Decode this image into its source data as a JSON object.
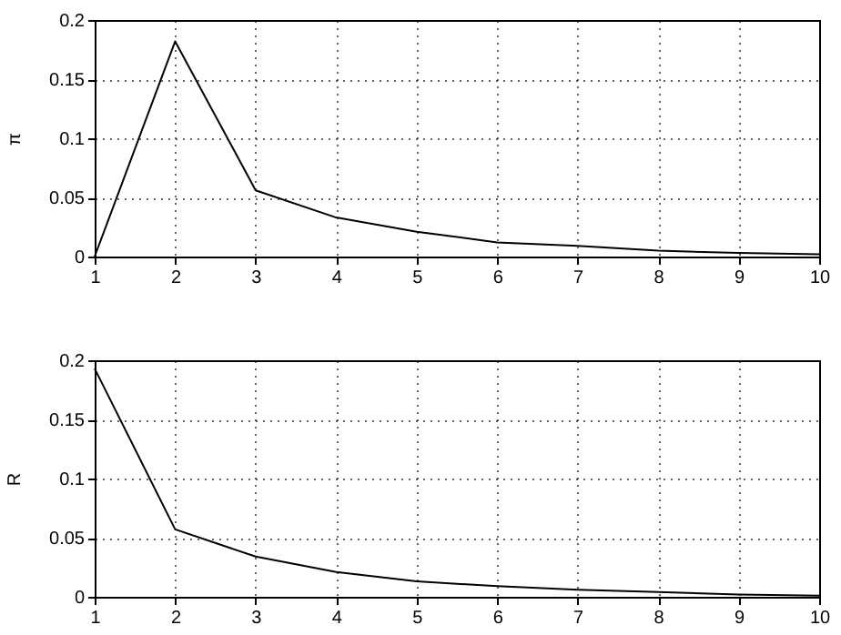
{
  "chart_data": [
    {
      "type": "line",
      "ylabel": "π",
      "x": [
        1,
        2,
        3,
        4,
        5,
        6,
        7,
        8,
        9,
        10
      ],
      "series": [
        {
          "color": "#000000",
          "values": [
            0,
            0.182,
            0.056,
            0.033,
            0.021,
            0.012,
            0.009,
            0.005,
            0.003,
            0.002
          ]
        }
      ],
      "xlim": [
        1,
        10
      ],
      "xticks": [
        1,
        2,
        3,
        4,
        5,
        6,
        7,
        8,
        9,
        10
      ],
      "ylim": [
        0,
        0.2
      ],
      "yticks": [
        0,
        0.05,
        0.1,
        0.15,
        0.2
      ],
      "grid": true,
      "line_style": "solid",
      "marker": "none"
    },
    {
      "type": "line",
      "ylabel": "R",
      "x": [
        1,
        2,
        3,
        4,
        5,
        6,
        7,
        8,
        9,
        10
      ],
      "series": [
        {
          "color": "#000000",
          "values": [
            0.193,
            0.057,
            0.034,
            0.021,
            0.013,
            0.009,
            0.006,
            0.004,
            0.002,
            0.001
          ]
        }
      ],
      "xlim": [
        1,
        10
      ],
      "xticks": [
        1,
        2,
        3,
        4,
        5,
        6,
        7,
        8,
        9,
        10
      ],
      "ylim": [
        0,
        0.2
      ],
      "yticks": [
        0,
        0.05,
        0.1,
        0.15,
        0.2
      ],
      "grid": true,
      "line_style": "solid",
      "marker": "none"
    }
  ]
}
